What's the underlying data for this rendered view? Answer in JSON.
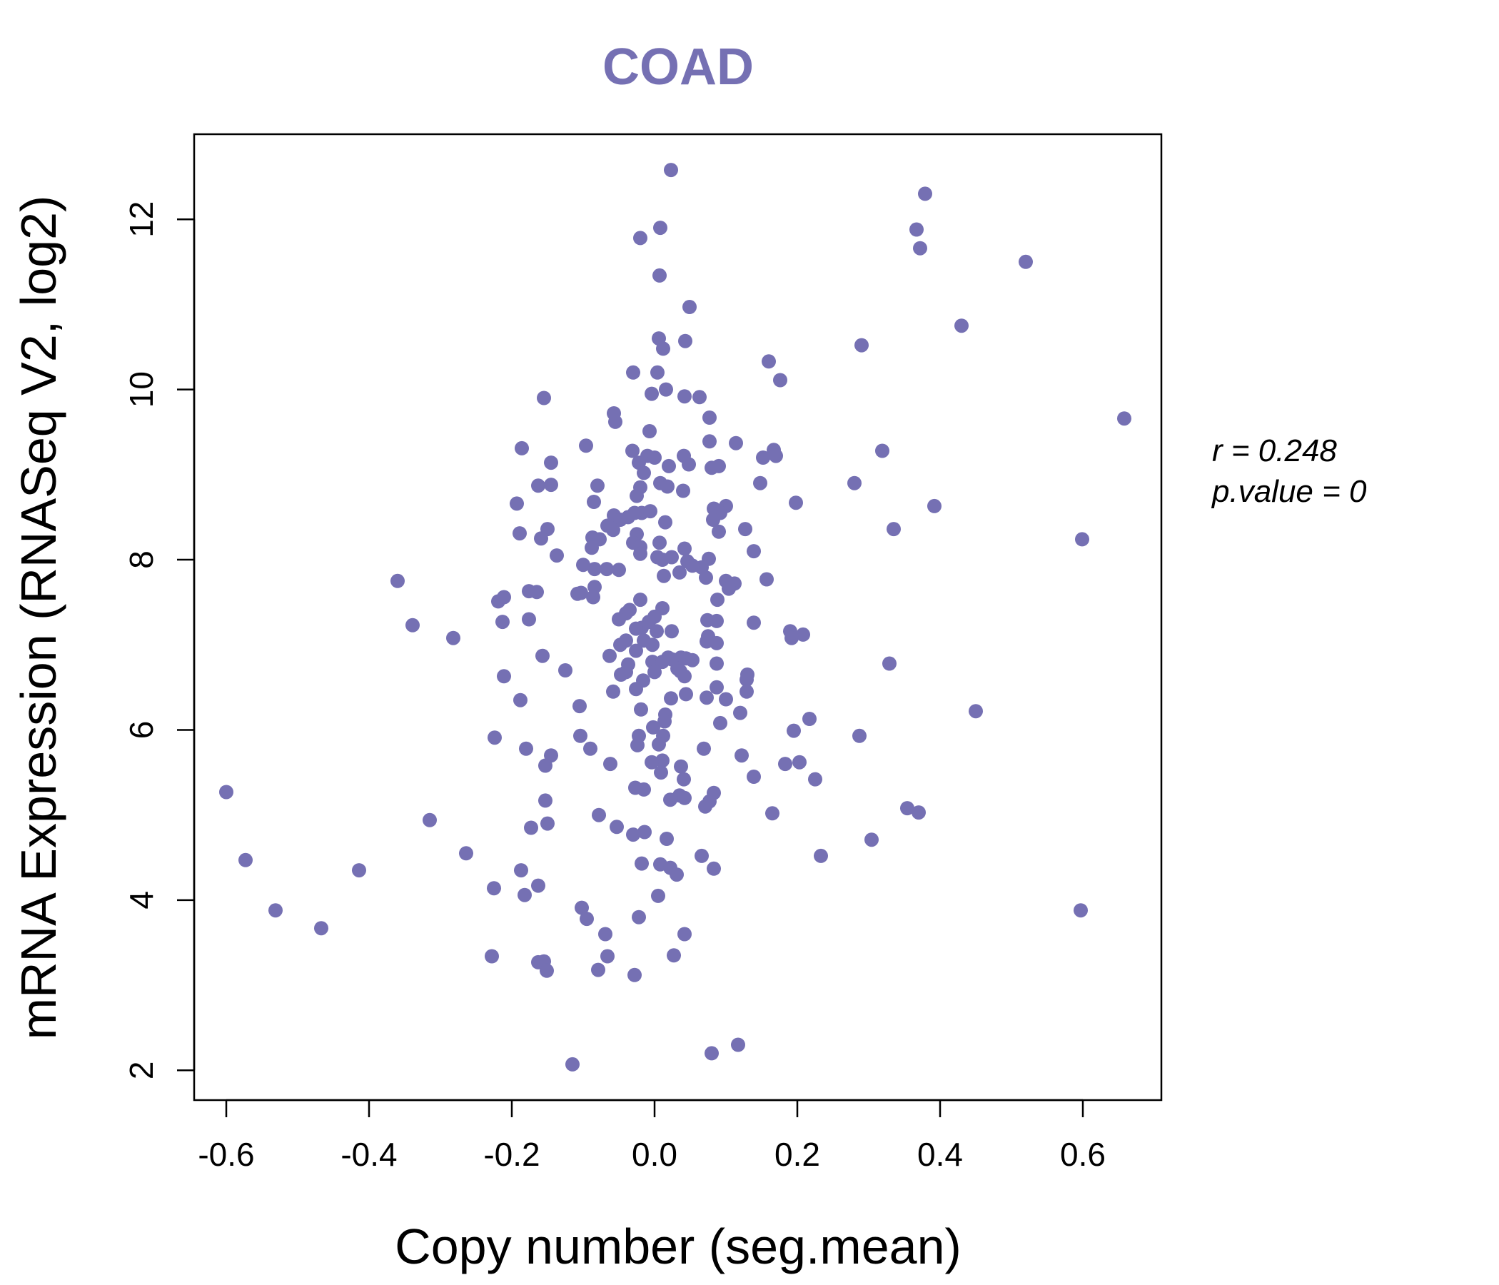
{
  "chart_data": {
    "type": "scatter",
    "title": "COAD",
    "xlabel": "Copy number (seg.mean)",
    "ylabel": "mRNA Expression (RNASeq V2, log2)",
    "xlim": [
      -0.645,
      0.71
    ],
    "ylim": [
      1.65,
      13.0
    ],
    "xticks": [
      -0.6,
      -0.4,
      -0.2,
      0.0,
      0.2,
      0.4,
      0.6
    ],
    "xtick_labels": [
      "-0.6",
      "-0.4",
      "-0.2",
      "0.0",
      "0.2",
      "0.4",
      "0.6"
    ],
    "yticks": [
      2,
      4,
      6,
      8,
      10,
      12
    ],
    "ytick_labels": [
      "2",
      "4",
      "6",
      "8",
      "10",
      "12"
    ],
    "grid": false,
    "colors": {
      "points": "#7570b3",
      "title": "#7570b3",
      "axis": "#000000"
    },
    "annotation": {
      "r_label": "r = 0.248",
      "p_label": "p.value = 0"
    },
    "points": [
      [
        0.023,
        12.58
      ],
      [
        0.379,
        12.3
      ],
      [
        0.008,
        11.9
      ],
      [
        -0.02,
        11.78
      ],
      [
        0.367,
        11.88
      ],
      [
        0.372,
        11.66
      ],
      [
        0.52,
        11.5
      ],
      [
        0.007,
        11.34
      ],
      [
        0.049,
        10.97
      ],
      [
        0.43,
        10.75
      ],
      [
        0.006,
        10.6
      ],
      [
        0.043,
        10.57
      ],
      [
        0.012,
        10.48
      ],
      [
        0.29,
        10.52
      ],
      [
        0.16,
        10.33
      ],
      [
        -0.03,
        10.2
      ],
      [
        0.004,
        10.2
      ],
      [
        0.176,
        10.11
      ],
      [
        0.016,
        10.0
      ],
      [
        -0.004,
        9.95
      ],
      [
        0.042,
        9.92
      ],
      [
        0.063,
        9.91
      ],
      [
        -0.155,
        9.9
      ],
      [
        0.658,
        9.66
      ],
      [
        -0.057,
        9.72
      ],
      [
        0.077,
        9.67
      ],
      [
        -0.055,
        9.62
      ],
      [
        -0.007,
        9.51
      ],
      [
        0.114,
        9.37
      ],
      [
        0.077,
        9.39
      ],
      [
        -0.096,
        9.34
      ],
      [
        -0.186,
        9.31
      ],
      [
        0.167,
        9.29
      ],
      [
        -0.031,
        9.28
      ],
      [
        0.319,
        9.28
      ],
      [
        0.152,
        9.2
      ],
      [
        0.17,
        9.22
      ],
      [
        0.041,
        9.22
      ],
      [
        -0.01,
        9.22
      ],
      [
        -0.145,
        9.14
      ],
      [
        -0.022,
        9.14
      ],
      [
        0.048,
        9.12
      ],
      [
        0.02,
        9.1
      ],
      [
        0.08,
        9.08
      ],
      [
        0.09,
        9.1
      ],
      [
        0.0,
        9.2
      ],
      [
        -0.015,
        9.02
      ],
      [
        0.148,
        8.9
      ],
      [
        0.28,
        8.9
      ],
      [
        -0.08,
        8.87
      ],
      [
        -0.163,
        8.87
      ],
      [
        -0.145,
        8.88
      ],
      [
        0.008,
        8.9
      ],
      [
        0.018,
        8.86
      ],
      [
        -0.02,
        8.85
      ],
      [
        0.04,
        8.81
      ],
      [
        -0.025,
        8.75
      ],
      [
        -0.085,
        8.68
      ],
      [
        -0.193,
        8.66
      ],
      [
        0.198,
        8.67
      ],
      [
        0.392,
        8.63
      ],
      [
        0.1,
        8.63
      ],
      [
        0.083,
        8.6
      ],
      [
        -0.018,
        8.55
      ],
      [
        -0.028,
        8.55
      ],
      [
        -0.006,
        8.57
      ],
      [
        0.092,
        8.55
      ],
      [
        -0.057,
        8.52
      ],
      [
        -0.048,
        8.47
      ],
      [
        -0.037,
        8.5
      ],
      [
        0.015,
        8.44
      ],
      [
        0.082,
        8.47
      ],
      [
        -0.066,
        8.4
      ],
      [
        0.127,
        8.36
      ],
      [
        0.335,
        8.36
      ],
      [
        -0.15,
        8.36
      ],
      [
        -0.058,
        8.35
      ],
      [
        -0.189,
        8.31
      ],
      [
        0.09,
        8.33
      ],
      [
        -0.025,
        8.3
      ],
      [
        -0.087,
        8.26
      ],
      [
        -0.159,
        8.25
      ],
      [
        0.599,
        8.24
      ],
      [
        -0.077,
        8.24
      ],
      [
        0.007,
        8.2
      ],
      [
        -0.03,
        8.2
      ],
      [
        -0.02,
        8.15
      ],
      [
        -0.088,
        8.14
      ],
      [
        0.042,
        8.13
      ],
      [
        0.139,
        8.1
      ],
      [
        -0.137,
        8.05
      ],
      [
        -0.02,
        8.07
      ],
      [
        0.004,
        8.03
      ],
      [
        0.011,
        8.0
      ],
      [
        0.024,
        8.03
      ],
      [
        0.076,
        8.01
      ],
      [
        0.046,
        7.98
      ],
      [
        -0.1,
        7.94
      ],
      [
        0.066,
        7.91
      ],
      [
        0.053,
        7.93
      ],
      [
        -0.067,
        7.89
      ],
      [
        -0.05,
        7.88
      ],
      [
        -0.084,
        7.89
      ],
      [
        0.035,
        7.85
      ],
      [
        0.013,
        7.81
      ],
      [
        0.072,
        7.79
      ],
      [
        0.157,
        7.77
      ],
      [
        -0.36,
        7.75
      ],
      [
        0.1,
        7.75
      ],
      [
        -0.084,
        7.68
      ],
      [
        0.112,
        7.72
      ],
      [
        0.104,
        7.66
      ],
      [
        -0.176,
        7.63
      ],
      [
        -0.165,
        7.62
      ],
      [
        -0.103,
        7.61
      ],
      [
        -0.108,
        7.6
      ],
      [
        -0.086,
        7.56
      ],
      [
        -0.211,
        7.56
      ],
      [
        -0.219,
        7.51
      ],
      [
        0.088,
        7.53
      ],
      [
        -0.02,
        7.53
      ],
      [
        0.011,
        7.43
      ],
      [
        -0.035,
        7.41
      ],
      [
        -0.04,
        7.37
      ],
      [
        -0.05,
        7.3
      ],
      [
        -0.176,
        7.3
      ],
      [
        -0.213,
        7.27
      ],
      [
        -0.339,
        7.23
      ],
      [
        0.074,
        7.29
      ],
      [
        0.087,
        7.28
      ],
      [
        0.139,
        7.26
      ],
      [
        0.0,
        7.33
      ],
      [
        -0.008,
        7.27
      ],
      [
        -0.018,
        7.2
      ],
      [
        -0.026,
        7.19
      ],
      [
        0.003,
        7.16
      ],
      [
        0.024,
        7.16
      ],
      [
        0.19,
        7.16
      ],
      [
        0.208,
        7.12
      ],
      [
        0.192,
        7.08
      ],
      [
        -0.282,
        7.08
      ],
      [
        0.075,
        7.1
      ],
      [
        -0.04,
        7.05
      ],
      [
        -0.015,
        7.05
      ],
      [
        -0.048,
        7.0
      ],
      [
        0.073,
        7.04
      ],
      [
        0.087,
        7.02
      ],
      [
        -0.003,
        7.0
      ],
      [
        -0.026,
        6.93
      ],
      [
        -0.157,
        6.87
      ],
      [
        -0.063,
        6.87
      ],
      [
        0.019,
        6.85
      ],
      [
        0.037,
        6.85
      ],
      [
        0.044,
        6.84
      ],
      [
        0.024,
        6.83
      ],
      [
        0.053,
        6.82
      ],
      [
        -0.003,
        6.8
      ],
      [
        0.011,
        6.8
      ],
      [
        -0.037,
        6.77
      ],
      [
        0.087,
        6.78
      ],
      [
        0.329,
        6.78
      ],
      [
        0.032,
        6.72
      ],
      [
        0.036,
        6.69
      ],
      [
        -0.125,
        6.7
      ],
      [
        -0.04,
        6.68
      ],
      [
        0.0,
        6.68
      ],
      [
        0.042,
        6.63
      ],
      [
        -0.047,
        6.65
      ],
      [
        -0.211,
        6.63
      ],
      [
        0.13,
        6.65
      ],
      [
        0.129,
        6.59
      ],
      [
        -0.016,
        6.58
      ],
      [
        0.087,
        6.5
      ],
      [
        -0.026,
        6.48
      ],
      [
        0.129,
        6.45
      ],
      [
        -0.058,
        6.45
      ],
      [
        0.044,
        6.42
      ],
      [
        0.023,
        6.37
      ],
      [
        0.073,
        6.38
      ],
      [
        0.1,
        6.36
      ],
      [
        -0.188,
        6.35
      ],
      [
        0.12,
        6.2
      ],
      [
        -0.105,
        6.28
      ],
      [
        -0.019,
        6.24
      ],
      [
        0.45,
        6.22
      ],
      [
        0.015,
        6.18
      ],
      [
        0.014,
        6.1
      ],
      [
        0.217,
        6.13
      ],
      [
        0.092,
        6.08
      ],
      [
        -0.002,
        6.03
      ],
      [
        0.195,
        5.99
      ],
      [
        -0.022,
        5.93
      ],
      [
        0.287,
        5.93
      ],
      [
        0.012,
        5.93
      ],
      [
        -0.104,
        5.93
      ],
      [
        -0.224,
        5.91
      ],
      [
        -0.024,
        5.82
      ],
      [
        0.006,
        5.83
      ],
      [
        -0.18,
        5.78
      ],
      [
        -0.09,
        5.78
      ],
      [
        0.069,
        5.78
      ],
      [
        0.122,
        5.7
      ],
      [
        -0.145,
        5.7
      ],
      [
        0.011,
        5.64
      ],
      [
        -0.004,
        5.62
      ],
      [
        0.203,
        5.62
      ],
      [
        -0.062,
        5.6
      ],
      [
        0.183,
        5.6
      ],
      [
        -0.153,
        5.58
      ],
      [
        0.037,
        5.57
      ],
      [
        0.009,
        5.5
      ],
      [
        0.041,
        5.42
      ],
      [
        0.139,
        5.45
      ],
      [
        0.225,
        5.42
      ],
      [
        -0.027,
        5.32
      ],
      [
        -0.015,
        5.3
      ],
      [
        -0.6,
        5.27
      ],
      [
        0.083,
        5.26
      ],
      [
        0.035,
        5.23
      ],
      [
        0.042,
        5.2
      ],
      [
        0.022,
        5.18
      ],
      [
        0.077,
        5.16
      ],
      [
        0.071,
        5.1
      ],
      [
        -0.153,
        5.17
      ],
      [
        0.354,
        5.08
      ],
      [
        0.37,
        5.03
      ],
      [
        -0.078,
        5.0
      ],
      [
        0.165,
        5.02
      ],
      [
        -0.315,
        4.94
      ],
      [
        -0.15,
        4.9
      ],
      [
        -0.173,
        4.85
      ],
      [
        -0.053,
        4.86
      ],
      [
        -0.014,
        4.8
      ],
      [
        -0.03,
        4.77
      ],
      [
        0.017,
        4.72
      ],
      [
        0.304,
        4.71
      ],
      [
        -0.264,
        4.55
      ],
      [
        0.066,
        4.52
      ],
      [
        0.233,
        4.52
      ],
      [
        -0.573,
        4.47
      ],
      [
        -0.018,
        4.43
      ],
      [
        0.008,
        4.42
      ],
      [
        0.022,
        4.38
      ],
      [
        0.083,
        4.37
      ],
      [
        -0.414,
        4.35
      ],
      [
        -0.187,
        4.35
      ],
      [
        0.031,
        4.3
      ],
      [
        -0.163,
        4.17
      ],
      [
        -0.225,
        4.14
      ],
      [
        -0.182,
        4.06
      ],
      [
        0.005,
        4.05
      ],
      [
        -0.102,
        3.91
      ],
      [
        0.597,
        3.88
      ],
      [
        -0.531,
        3.88
      ],
      [
        -0.022,
        3.8
      ],
      [
        -0.095,
        3.78
      ],
      [
        -0.467,
        3.67
      ],
      [
        -0.069,
        3.6
      ],
      [
        0.042,
        3.6
      ],
      [
        0.027,
        3.35
      ],
      [
        -0.228,
        3.34
      ],
      [
        -0.066,
        3.34
      ],
      [
        -0.163,
        3.27
      ],
      [
        -0.155,
        3.28
      ],
      [
        -0.079,
        3.18
      ],
      [
        -0.151,
        3.17
      ],
      [
        -0.028,
        3.12
      ],
      [
        0.117,
        2.3
      ],
      [
        0.08,
        2.2
      ],
      [
        -0.115,
        2.07
      ]
    ]
  }
}
